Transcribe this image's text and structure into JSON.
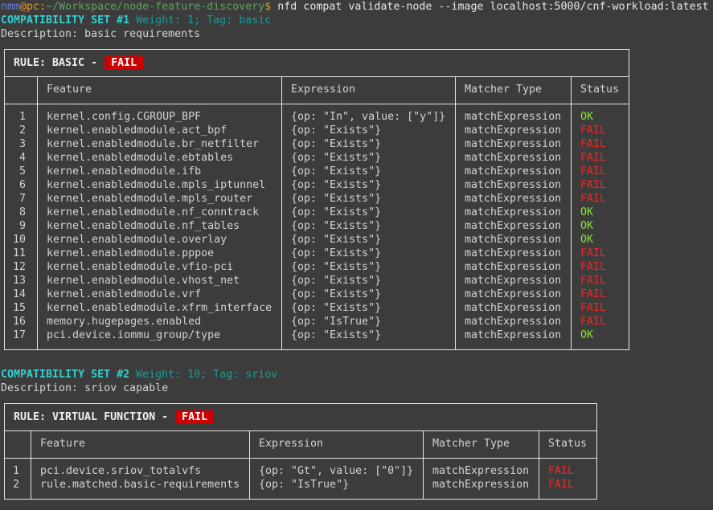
{
  "prompt": {
    "user": "nmm",
    "at": "@",
    "host": "pc",
    "sep": ":",
    "path": "~/Workspace/node-feature-discovery",
    "dollar": "$",
    "command": " nfd compat validate-node --image localhost:5000/cnf-workload:latest"
  },
  "colors": {
    "ok": "#8ae234",
    "fail": "#ef2929",
    "badge": "#cc0000",
    "set_title": "#34d0d0",
    "set_meta": "#1a9c9c"
  },
  "sets": [
    {
      "title": "COMPATIBILITY SET #1",
      "meta": " Weight: 1; Tag: basic",
      "description": "Description: basic requirements",
      "rule_label": "RULE: BASIC -",
      "rule_status": "FAIL",
      "headers": [
        "Feature",
        "Expression",
        "Matcher Type",
        "Status"
      ],
      "rows": [
        [
          "1",
          "kernel.config.CGROUP_BPF",
          "{op: \"In\", value: [\"y\"]}",
          "matchExpression",
          "OK"
        ],
        [
          "2",
          "kernel.enabledmodule.act_bpf",
          "{op: \"Exists\"}",
          "matchExpression",
          "FAIL"
        ],
        [
          "3",
          "kernel.enabledmodule.br_netfilter",
          "{op: \"Exists\"}",
          "matchExpression",
          "FAIL"
        ],
        [
          "4",
          "kernel.enabledmodule.ebtables",
          "{op: \"Exists\"}",
          "matchExpression",
          "FAIL"
        ],
        [
          "5",
          "kernel.enabledmodule.ifb",
          "{op: \"Exists\"}",
          "matchExpression",
          "FAIL"
        ],
        [
          "6",
          "kernel.enabledmodule.mpls_iptunnel",
          "{op: \"Exists\"}",
          "matchExpression",
          "FAIL"
        ],
        [
          "7",
          "kernel.enabledmodule.mpls_router",
          "{op: \"Exists\"}",
          "matchExpression",
          "FAIL"
        ],
        [
          "8",
          "kernel.enabledmodule.nf_conntrack",
          "{op: \"Exists\"}",
          "matchExpression",
          "OK"
        ],
        [
          "9",
          "kernel.enabledmodule.nf_tables",
          "{op: \"Exists\"}",
          "matchExpression",
          "OK"
        ],
        [
          "10",
          "kernel.enabledmodule.overlay",
          "{op: \"Exists\"}",
          "matchExpression",
          "OK"
        ],
        [
          "11",
          "kernel.enabledmodule.pppoe",
          "{op: \"Exists\"}",
          "matchExpression",
          "FAIL"
        ],
        [
          "12",
          "kernel.enabledmodule.vfio-pci",
          "{op: \"Exists\"}",
          "matchExpression",
          "FAIL"
        ],
        [
          "13",
          "kernel.enabledmodule.vhost_net",
          "{op: \"Exists\"}",
          "matchExpression",
          "FAIL"
        ],
        [
          "14",
          "kernel.enabledmodule.vrf",
          "{op: \"Exists\"}",
          "matchExpression",
          "FAIL"
        ],
        [
          "15",
          "kernel.enabledmodule.xfrm_interface",
          "{op: \"Exists\"}",
          "matchExpression",
          "FAIL"
        ],
        [
          "16",
          "memory.hugepages.enabled",
          "{op: \"IsTrue\"}",
          "matchExpression",
          "FAIL"
        ],
        [
          "17",
          "pci.device.iommu_group/type",
          "{op: \"Exists\"}",
          "matchExpression",
          "OK"
        ]
      ]
    },
    {
      "title": "COMPATIBILITY SET #2",
      "meta": " Weight: 10; Tag: sriov",
      "description": "Description: sriov capable",
      "rule_label": "RULE: VIRTUAL FUNCTION -",
      "rule_status": "FAIL",
      "headers": [
        "Feature",
        "Expression",
        "Matcher Type",
        "Status"
      ],
      "rows": [
        [
          "1",
          "pci.device.sriov_totalvfs",
          "{op: \"Gt\", value: [\"0\"]}",
          "matchExpression",
          "FAIL"
        ],
        [
          "2",
          "rule.matched.basic-requirements",
          "{op: \"IsTrue\"}",
          "matchExpression",
          "FAIL"
        ]
      ]
    }
  ]
}
